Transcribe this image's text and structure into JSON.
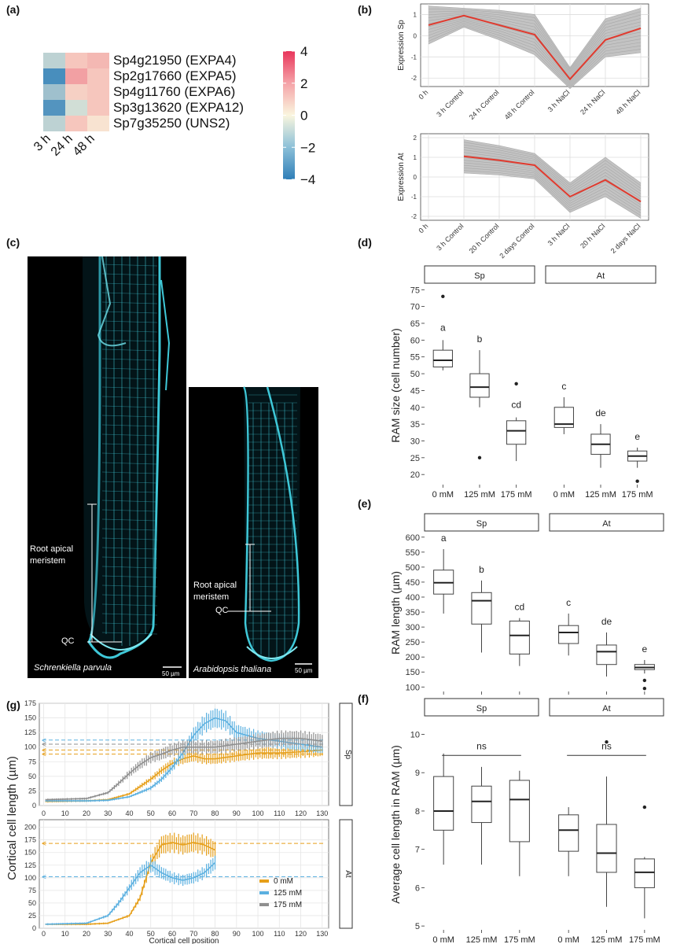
{
  "panel_labels": {
    "a": "(a)",
    "b": "(b)",
    "c": "(c)",
    "d": "(d)",
    "e": "(e)",
    "f": "(f)",
    "g": "(g)"
  },
  "colors": {
    "orange": "#E69F1A",
    "blue": "#5BB0E0",
    "grey": "#8F8F8F",
    "red": "#E03A2E",
    "hm_pos": "#E8365B",
    "hm_neg": "#2F7FB8",
    "cyan": "#3FC8D8"
  },
  "chart_data": [
    {
      "id": "a",
      "type": "heatmap",
      "rows": [
        "Sp4g21950 (EXPA4)",
        "Sp2g17660 (EXPA5)",
        "Sp4g11760 (EXPA6)",
        "Sp3g13620 (EXPA12)",
        "Sp7g35250 (UNS2)"
      ],
      "columns": [
        "3 h",
        "24 h",
        "48 h"
      ],
      "values": [
        [
          -1.2,
          1.0,
          1.3
        ],
        [
          -3.5,
          1.8,
          1.0
        ],
        [
          -1.8,
          0.8,
          1.0
        ],
        [
          -3.3,
          -0.8,
          1.0
        ],
        [
          -1.2,
          1.0,
          0.4
        ]
      ],
      "colorbar_ticks": [
        "4",
        "2",
        "0",
        "−2",
        "−4"
      ],
      "range": [
        -4,
        4
      ]
    },
    {
      "id": "b_sp",
      "type": "line",
      "ylabel": "Expression Sp",
      "categories": [
        "0 h",
        "3 h Control",
        "24 h Control",
        "48 h Control",
        "3 h NaCl",
        "24 h NaCl",
        "48 h NaCl"
      ],
      "mean": [
        0.5,
        0.95,
        0.5,
        0.05,
        -2.05,
        -0.2,
        0.35
      ],
      "band_upper": [
        1.4,
        1.3,
        1.2,
        1.0,
        -1.5,
        0.8,
        1.3
      ],
      "band_lower": [
        -0.4,
        0.4,
        -0.2,
        -0.9,
        -2.5,
        -1.0,
        -0.8
      ],
      "yticks": [
        "1",
        "0",
        "-1",
        "-2"
      ],
      "ylim": [
        -2.4,
        1.5
      ]
    },
    {
      "id": "b_at",
      "type": "line",
      "ylabel": "Expression At",
      "categories": [
        "0 h",
        "3 h Control",
        "20 h Control",
        "2 days Control",
        "3 h NaCl",
        "20 h NaCl",
        "2 days NaCl"
      ],
      "mean": [
        null,
        1.05,
        0.85,
        0.6,
        -1.0,
        -0.15,
        -1.25
      ],
      "band_upper": [
        null,
        1.9,
        1.6,
        1.2,
        -0.3,
        1.0,
        -0.3
      ],
      "band_lower": [
        null,
        0.2,
        0.1,
        -0.1,
        -1.8,
        -1.0,
        -2.1
      ],
      "yticks": [
        "2",
        "1",
        "0",
        "-1",
        "-2"
      ],
      "ylim": [
        -2.2,
        2.2
      ]
    },
    {
      "id": "d",
      "type": "boxplot",
      "ylabel": "RAM size (cell number)",
      "facets": [
        "Sp",
        "At"
      ],
      "xcats": [
        "0 mM",
        "125 mM",
        "175 mM"
      ],
      "yticks": [
        "20",
        "25",
        "30",
        "35",
        "40",
        "45",
        "50",
        "55",
        "60",
        "65",
        "70",
        "75"
      ],
      "ylim": [
        17,
        76
      ],
      "boxes": [
        {
          "facet": "Sp",
          "cat": "0 mM",
          "min": 51,
          "q1": 52,
          "median": 54,
          "q3": 57,
          "max": 60,
          "outliers": [
            73
          ],
          "letter": "a"
        },
        {
          "facet": "Sp",
          "cat": "125 mM",
          "min": 40,
          "q1": 43,
          "median": 46,
          "q3": 50,
          "max": 57,
          "outliers": [
            25
          ],
          "letter": "b"
        },
        {
          "facet": "Sp",
          "cat": "175 mM",
          "min": 24,
          "q1": 29,
          "median": 33,
          "q3": 36,
          "max": 37,
          "outliers": [
            47
          ],
          "letter": "cd"
        },
        {
          "facet": "At",
          "cat": "0 mM",
          "min": 32,
          "q1": 34,
          "median": 35,
          "q3": 40,
          "max": 43,
          "outliers": [],
          "letter": "c"
        },
        {
          "facet": "At",
          "cat": "125 mM",
          "min": 22,
          "q1": 26,
          "median": 29,
          "q3": 32,
          "max": 35,
          "outliers": [],
          "letter": "de"
        },
        {
          "facet": "At",
          "cat": "175 mM",
          "min": 22,
          "q1": 24,
          "median": 25.5,
          "q3": 27,
          "max": 28,
          "outliers": [
            18
          ],
          "letter": "e"
        }
      ]
    },
    {
      "id": "e",
      "type": "boxplot",
      "ylabel": "RAM length (µm)",
      "facets": [
        "Sp",
        "At"
      ],
      "xcats": [
        "0 mM",
        "125 mM",
        "175 mM"
      ],
      "yticks": [
        "100",
        "150",
        "200",
        "250",
        "300",
        "350",
        "400",
        "450",
        "500",
        "550",
        "600"
      ],
      "ylim": [
        85,
        610
      ],
      "boxes": [
        {
          "facet": "Sp",
          "cat": "0 mM",
          "min": 345,
          "q1": 410,
          "median": 448,
          "q3": 490,
          "max": 560,
          "outliers": [],
          "letter": "a"
        },
        {
          "facet": "Sp",
          "cat": "125 mM",
          "min": 215,
          "q1": 310,
          "median": 388,
          "q3": 415,
          "max": 455,
          "outliers": [],
          "letter": "b"
        },
        {
          "facet": "Sp",
          "cat": "175 mM",
          "min": 170,
          "q1": 210,
          "median": 272,
          "q3": 320,
          "max": 330,
          "outliers": [],
          "letter": "cd"
        },
        {
          "facet": "At",
          "cat": "0 mM",
          "min": 205,
          "q1": 245,
          "median": 282,
          "q3": 305,
          "max": 345,
          "outliers": [],
          "letter": "c"
        },
        {
          "facet": "At",
          "cat": "125 mM",
          "min": 135,
          "q1": 175,
          "median": 218,
          "q3": 240,
          "max": 282,
          "outliers": [],
          "letter": "de"
        },
        {
          "facet": "At",
          "cat": "175 mM",
          "min": 145,
          "q1": 158,
          "median": 165,
          "q3": 175,
          "max": 190,
          "outliers": [
            122,
            95
          ],
          "letter": "e"
        }
      ]
    },
    {
      "id": "f",
      "type": "boxplot",
      "ylabel": "Average cell length in RAM (µm)",
      "facets": [
        "Sp",
        "At"
      ],
      "xcats": [
        "0 mM",
        "125 mM",
        "175 mM"
      ],
      "yticks": [
        "5",
        "6",
        "7",
        "8",
        "9",
        "10"
      ],
      "ylim": [
        4.9,
        10.4
      ],
      "sig_label": "ns",
      "boxes": [
        {
          "facet": "Sp",
          "cat": "0 mM",
          "min": 6.6,
          "q1": 7.5,
          "median": 8.0,
          "q3": 8.9,
          "max": 9.5,
          "outliers": [],
          "letter": ""
        },
        {
          "facet": "Sp",
          "cat": "125 mM",
          "min": 6.6,
          "q1": 7.7,
          "median": 8.25,
          "q3": 8.65,
          "max": 9.15,
          "outliers": [],
          "letter": ""
        },
        {
          "facet": "Sp",
          "cat": "175 mM",
          "min": 6.3,
          "q1": 7.2,
          "median": 8.3,
          "q3": 8.8,
          "max": 9.05,
          "outliers": [],
          "letter": ""
        },
        {
          "facet": "At",
          "cat": "0 mM",
          "min": 6.3,
          "q1": 6.95,
          "median": 7.5,
          "q3": 7.9,
          "max": 8.1,
          "outliers": [],
          "letter": ""
        },
        {
          "facet": "At",
          "cat": "125 mM",
          "min": 5.5,
          "q1": 6.4,
          "median": 6.9,
          "q3": 7.65,
          "max": 8.9,
          "outliers": [
            9.8
          ],
          "letter": ""
        },
        {
          "facet": "At",
          "cat": "175 mM",
          "min": 5.2,
          "q1": 6.0,
          "median": 6.4,
          "q3": 6.75,
          "max": 6.8,
          "outliers": [
            8.1
          ],
          "letter": ""
        }
      ]
    },
    {
      "id": "g",
      "type": "line",
      "ylabel": "Cortical cell length (µm)",
      "xlabel": "Cortical cell position",
      "facets": [
        "Sp",
        "At"
      ],
      "xticks": [
        "0",
        "10",
        "20",
        "30",
        "40",
        "50",
        "60",
        "70",
        "80",
        "90",
        "100",
        "110",
        "120",
        "130"
      ],
      "sp_yticks": [
        "0",
        "25",
        "50",
        "75",
        "100",
        "125",
        "150",
        "175"
      ],
      "sp_ylim": [
        0,
        175
      ],
      "at_yticks": [
        "0",
        "25",
        "50",
        "75",
        "100",
        "125",
        "150",
        "175",
        "200"
      ],
      "at_ylim": [
        0,
        215
      ],
      "legend": [
        "0 mM",
        "125 mM",
        "175 mM"
      ],
      "sp_series": [
        {
          "name": "0 mM",
          "color": "orange",
          "x": [
            1,
            20,
            30,
            40,
            50,
            55,
            60,
            65,
            70,
            75,
            80,
            90,
            100,
            110,
            120,
            130
          ],
          "y": [
            7,
            8,
            10,
            20,
            45,
            60,
            72,
            80,
            85,
            80,
            80,
            85,
            90,
            90,
            92,
            95
          ]
        },
        {
          "name": "125 mM",
          "color": "blue",
          "x": [
            1,
            20,
            30,
            40,
            50,
            55,
            60,
            65,
            70,
            75,
            80,
            85,
            90,
            100,
            110,
            120,
            130
          ],
          "y": [
            8,
            8,
            9,
            15,
            30,
            45,
            65,
            90,
            120,
            140,
            150,
            145,
            125,
            115,
            110,
            105,
            100
          ]
        },
        {
          "name": "175 mM",
          "color": "grey",
          "x": [
            1,
            20,
            30,
            35,
            40,
            45,
            50,
            55,
            60,
            65,
            70,
            80,
            90,
            100,
            110,
            120,
            130
          ],
          "y": [
            10,
            12,
            22,
            38,
            55,
            70,
            82,
            88,
            95,
            100,
            100,
            100,
            105,
            110,
            115,
            115,
            110
          ]
        }
      ],
      "sp_dashed": [
        {
          "color": "blue",
          "y": 112
        },
        {
          "color": "grey",
          "y": 105
        },
        {
          "color": "orange",
          "y": 95
        },
        {
          "color": "orange",
          "y": 88
        }
      ],
      "at_series": [
        {
          "name": "0 mM",
          "color": "orange",
          "x": [
            1,
            20,
            30,
            40,
            45,
            50,
            55,
            60,
            65,
            70,
            75,
            80
          ],
          "y": [
            8,
            8,
            10,
            25,
            60,
            130,
            165,
            170,
            165,
            170,
            165,
            155
          ]
        },
        {
          "name": "125 mM",
          "color": "blue",
          "x": [
            1,
            20,
            30,
            35,
            40,
            45,
            50,
            55,
            60,
            65,
            70,
            75,
            80
          ],
          "y": [
            8,
            10,
            25,
            50,
            80,
            110,
            125,
            110,
            100,
            95,
            100,
            110,
            130
          ]
        }
      ],
      "at_dashed": [
        {
          "color": "orange",
          "y": 168
        },
        {
          "color": "blue",
          "y": 102
        }
      ]
    }
  ],
  "micrograph": {
    "root_label": "Root apical meristem",
    "qc_label": "QC",
    "scale_label": "50 µm",
    "species_sp": "Schrenkiella parvula",
    "species_at": "Arabidopsis thaliana"
  }
}
